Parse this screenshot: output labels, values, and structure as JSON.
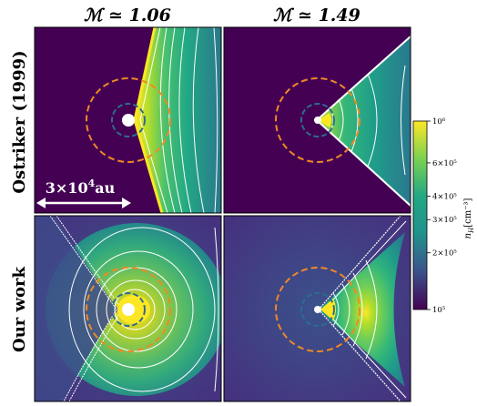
{
  "figure": {
    "col_titles": [
      "ℳ ≃ 1.06",
      "ℳ ≃ 1.49"
    ],
    "row_labels": [
      "Ostriker (1999)",
      "Our work"
    ],
    "scale_bar": {
      "base": "3×10",
      "exp": "4",
      "unit": "au"
    }
  },
  "colorbar": {
    "label_var": "n",
    "label_sub": "H",
    "label_unit": "[cm⁻³]",
    "ticks": [
      {
        "value": 100000,
        "label": "10⁵"
      },
      {
        "value": 200000,
        "label": "2×10⁵"
      },
      {
        "value": 300000,
        "label": "3×10⁵"
      },
      {
        "value": 400000,
        "label": "4×10⁵"
      },
      {
        "value": 600000,
        "label": "6×10⁵"
      },
      {
        "value": 1000000,
        "label": "10⁶"
      }
    ],
    "range": [
      100000,
      1000000
    ],
    "scale": "log",
    "colormap": "viridis"
  },
  "colors": {
    "inner_circle": "#2e6c8e",
    "outer_circle": "#f08a24",
    "contour": "#ffffff",
    "background_low": "#440154",
    "peak": "#fde725"
  }
}
